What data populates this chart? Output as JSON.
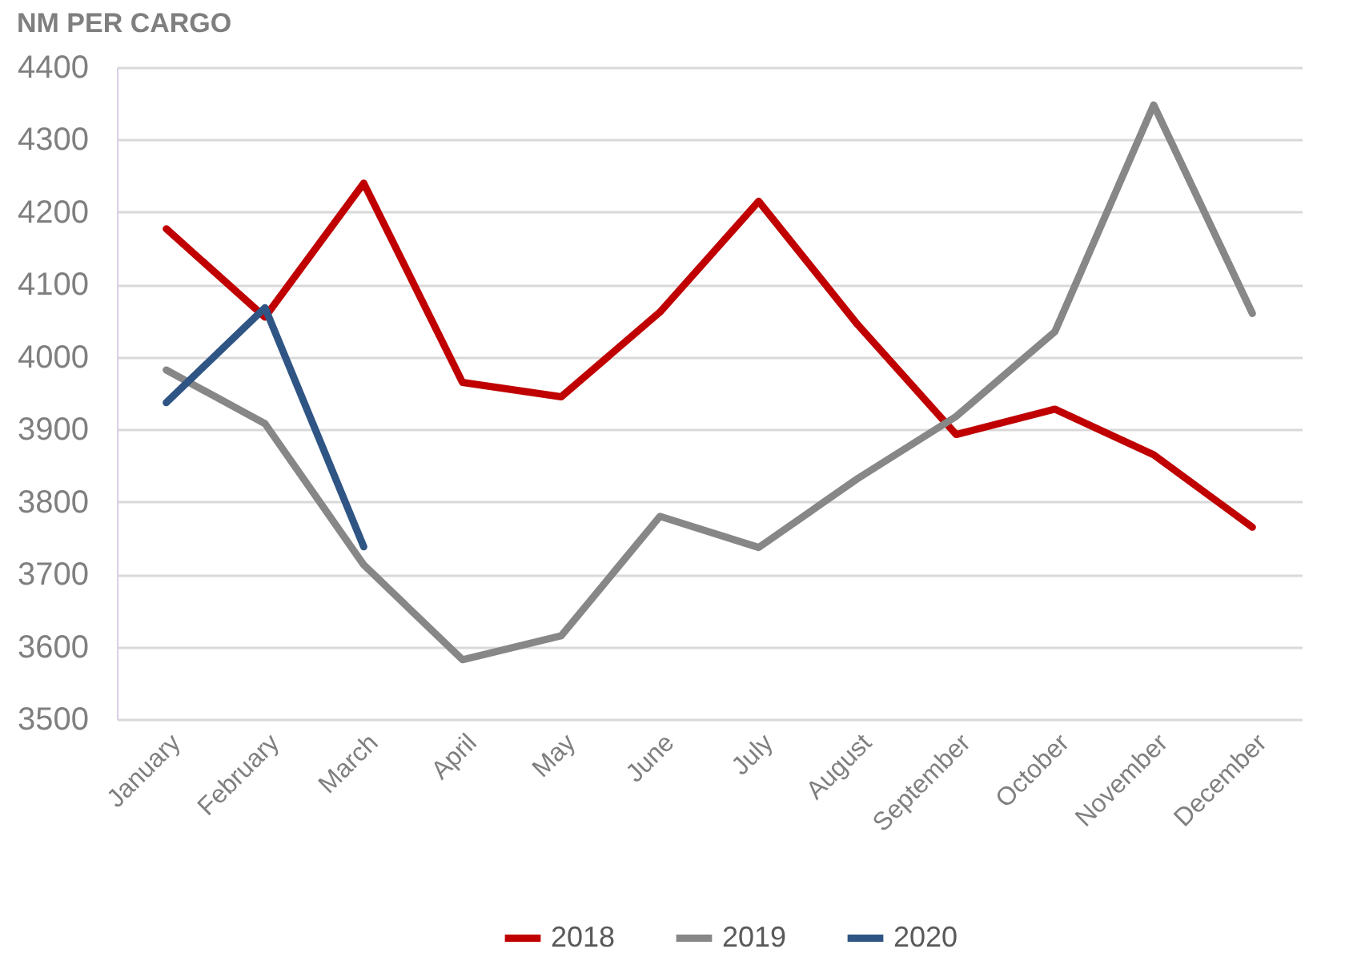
{
  "chart_data": {
    "type": "line",
    "title": "NM PER CARGO",
    "categories": [
      "January",
      "February",
      "March",
      "April",
      "May",
      "June",
      "July",
      "August",
      "September",
      "October",
      "November",
      "December"
    ],
    "series": [
      {
        "name": "2018",
        "color": "#c00000",
        "values": [
          4177,
          4055,
          4240,
          3965,
          3945,
          4062,
          4215,
          4045,
          3893,
          3928,
          3865,
          3765
        ]
      },
      {
        "name": "2019",
        "color": "#878787",
        "values": [
          3982,
          3908,
          3713,
          3582,
          3615,
          3780,
          3737,
          3832,
          3918,
          4035,
          4348,
          4060
        ]
      },
      {
        "name": "2020",
        "color": "#2f5584",
        "values": [
          3937,
          4068,
          3738,
          null,
          null,
          null,
          null,
          null,
          null,
          null,
          null,
          null
        ]
      }
    ],
    "ylim": [
      3500,
      4400
    ],
    "yticks": [
      3500,
      3600,
      3700,
      3800,
      3900,
      4000,
      4100,
      4200,
      4300,
      4400
    ],
    "grid": "y",
    "legend": "bottom",
    "marker": "none",
    "line_style": "solid"
  }
}
